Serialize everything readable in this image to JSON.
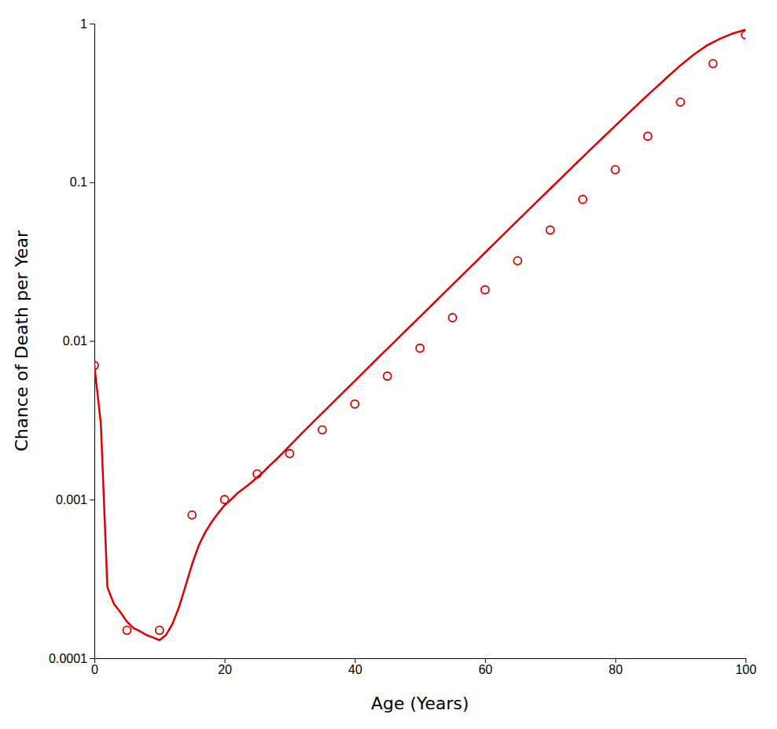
{
  "chart_data": {
    "type": "line",
    "xlabel": "Age (Years)",
    "ylabel": "Chance of Death per Year",
    "log": "y",
    "grid": false,
    "xlim": [
      0,
      100
    ],
    "ylim": [
      0.0001,
      1.0
    ],
    "xticks": [
      0,
      20,
      40,
      60,
      80,
      100
    ],
    "yticks": [
      0.0001,
      0.001,
      0.01,
      0.1,
      1
    ],
    "series": [
      {
        "type": "line",
        "line_style": "solid",
        "color": "#dd0000",
        "x": [
          0,
          1,
          2,
          3,
          4,
          5,
          6,
          7,
          8,
          9,
          10,
          11,
          12,
          13,
          14,
          15,
          16,
          17,
          18,
          19,
          20,
          21,
          22,
          23,
          24,
          25,
          26,
          27,
          28,
          29,
          30,
          32,
          34,
          36,
          38,
          40,
          42,
          44,
          46,
          48,
          50,
          52,
          54,
          56,
          58,
          60,
          62,
          64,
          66,
          68,
          70,
          72,
          74,
          76,
          78,
          80,
          82,
          84,
          86,
          88,
          90,
          92,
          94,
          96,
          98,
          100
        ],
        "values": [
          0.007,
          0.003,
          0.00028,
          0.00022,
          0.000195,
          0.00017,
          0.000155,
          0.000148,
          0.00014,
          0.000135,
          0.00013,
          0.00014,
          0.000165,
          0.00021,
          0.000285,
          0.00039,
          0.00051,
          0.00062,
          0.00072,
          0.00082,
          0.00092,
          0.001,
          0.0011,
          0.00118,
          0.00127,
          0.00138,
          0.0015,
          0.00165,
          0.0018,
          0.00198,
          0.00218,
          0.00265,
          0.0032,
          0.00385,
          0.00465,
          0.0056,
          0.00675,
          0.00815,
          0.0098,
          0.0118,
          0.0142,
          0.0171,
          0.0206,
          0.0248,
          0.0299,
          0.036,
          0.0434,
          0.0523,
          0.0629,
          0.0757,
          0.091,
          0.1095,
          0.1315,
          0.158,
          0.1895,
          0.227,
          0.272,
          0.325,
          0.387,
          0.46,
          0.545,
          0.635,
          0.725,
          0.8,
          0.865,
          0.915
        ]
      },
      {
        "type": "scatter",
        "marker": "circle",
        "color": "#dd0000",
        "x": [
          0,
          5,
          10,
          15,
          20,
          25,
          30,
          35,
          40,
          45,
          50,
          55,
          60,
          65,
          70,
          75,
          80,
          85,
          90,
          95,
          100
        ],
        "values": [
          0.007,
          0.00015,
          0.00015,
          0.0008,
          0.001,
          0.00145,
          0.00195,
          0.00275,
          0.004,
          0.006,
          0.009,
          0.014,
          0.021,
          0.032,
          0.05,
          0.078,
          0.12,
          0.195,
          0.32,
          0.56,
          0.85
        ]
      }
    ]
  }
}
